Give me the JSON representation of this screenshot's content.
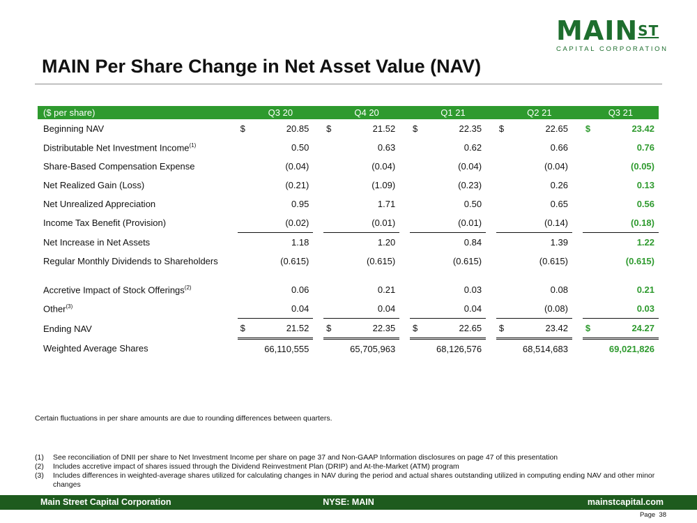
{
  "logo": {
    "main": "MAIN",
    "super": "ST",
    "sub": "CAPITAL CORPORATION"
  },
  "title": "MAIN Per Share Change in Net Asset Value (NAV)",
  "table": {
    "header": [
      "($ per share)",
      "Q3 20",
      "Q4 20",
      "Q1 21",
      "Q2 21",
      "Q3 21"
    ],
    "rows": [
      {
        "label": "Beginning NAV",
        "dollar": true,
        "values": [
          "20.85",
          "21.52",
          "22.35",
          "22.65",
          "23.42"
        ]
      },
      {
        "label": "Distributable Net Investment Income",
        "sup": "(1)",
        "values": [
          "0.50",
          "0.63",
          "0.62",
          "0.66",
          "0.76"
        ]
      },
      {
        "label": "Share-Based Compensation Expense",
        "values": [
          "(0.04)",
          "(0.04)",
          "(0.04)",
          "(0.04)",
          "(0.05)"
        ]
      },
      {
        "label": "Net Realized Gain (Loss)",
        "values": [
          "(0.21)",
          "(1.09)",
          "(0.23)",
          "0.26",
          "0.13"
        ]
      },
      {
        "label": "Net Unrealized Appreciation",
        "values": [
          "0.95",
          "1.71",
          "0.50",
          "0.65",
          "0.56"
        ]
      },
      {
        "label": "Income Tax Benefit (Provision)",
        "values": [
          "(0.02)",
          "(0.01)",
          "(0.01)",
          "(0.14)",
          "(0.18)"
        ]
      },
      {
        "label": "Net Increase in Net Assets",
        "values": [
          "1.18",
          "1.20",
          "0.84",
          "1.39",
          "1.22"
        ]
      },
      {
        "label": "Regular Monthly Dividends to Shareholders",
        "values": [
          "(0.615)",
          "(0.615)",
          "(0.615)",
          "(0.615)",
          "(0.615)"
        ]
      },
      {
        "label": "Accretive Impact of Stock Offerings",
        "sup": "(2)",
        "values": [
          "0.06",
          "0.21",
          "0.03",
          "0.08",
          "0.21"
        ]
      },
      {
        "label": "Other",
        "sup": "(3)",
        "values": [
          "0.04",
          "0.04",
          "0.04",
          "(0.08)",
          "0.03"
        ]
      },
      {
        "label": "Ending NAV",
        "dollar": true,
        "values": [
          "21.52",
          "22.35",
          "22.65",
          "23.42",
          "24.27"
        ]
      },
      {
        "label": "Weighted Average Shares",
        "values": [
          "66,110,555",
          "65,705,963",
          "68,126,576",
          "68,514,683",
          "69,021,826"
        ]
      }
    ],
    "currency_symbol": "$"
  },
  "note": "Certain fluctuations in per share amounts are due to rounding differences between quarters.",
  "footnotes": [
    {
      "num": "(1)",
      "text": "See reconciliation of DNII per share to Net Investment Income per share on page 37 and Non-GAAP Information disclosures on page 47 of this presentation"
    },
    {
      "num": "(2)",
      "text": "Includes accretive impact of shares issued through the Dividend Reinvestment Plan (DRIP) and At-the-Market (ATM) program"
    },
    {
      "num": "(3)",
      "text": "Includes differences in weighted-average shares utilized for calculating changes in NAV during the period and actual shares outstanding utilized in computing ending NAV and other minor changes"
    }
  ],
  "footer": {
    "company": "Main Street Capital Corporation",
    "ticker": "NYSE: MAIN",
    "website": "mainstcapital.com"
  },
  "page": {
    "label": "Page",
    "number": "38"
  },
  "colors": {
    "brand_green": "#1e6e2e",
    "header_green": "#2e9a2e",
    "footer_green": "#1e5b1e"
  }
}
